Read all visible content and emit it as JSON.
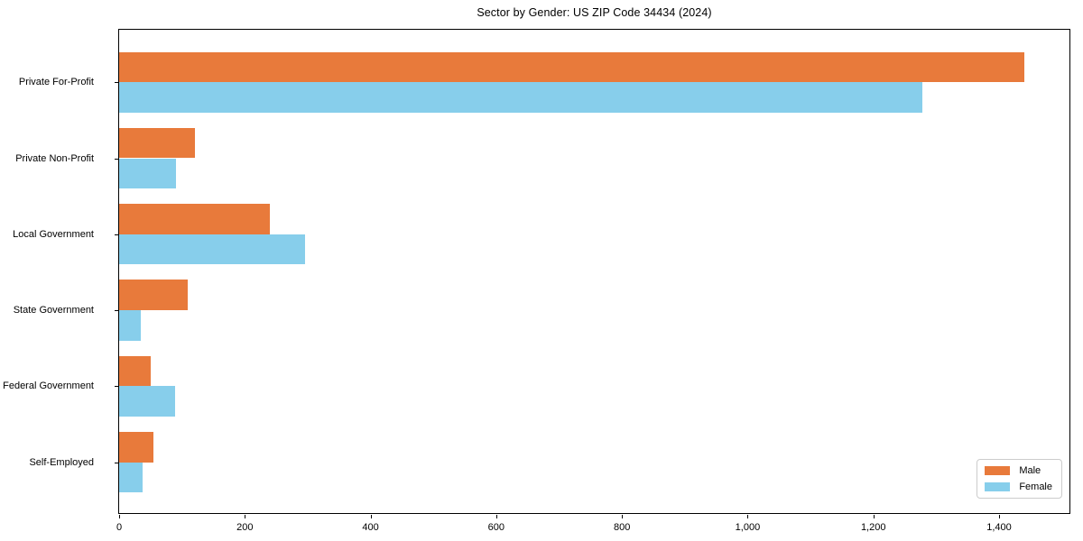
{
  "chart_data": {
    "type": "bar",
    "orientation": "horizontal",
    "title": "Sector by Gender: US ZIP Code 34434 (2024)",
    "categories": [
      "Private For-Profit",
      "Private Non-Profit",
      "Local Government",
      "State Government",
      "Federal Government",
      "Self-Employed"
    ],
    "series": [
      {
        "name": "Male",
        "color": "#E87A3B",
        "values": [
          1440,
          121,
          240,
          109,
          50,
          54
        ]
      },
      {
        "name": "Female",
        "color": "#87CEEB",
        "values": [
          1278,
          91,
          296,
          35,
          89,
          37
        ]
      }
    ],
    "xlabel": "",
    "ylabel": "",
    "xlim": [
      0,
      1512
    ],
    "xticks": [
      0,
      200,
      400,
      600,
      800,
      1000,
      1200,
      1400
    ],
    "xtick_labels": [
      "0",
      "200",
      "400",
      "600",
      "800",
      "1,000",
      "1,200",
      "1,400"
    ],
    "grid": false,
    "legend_position": "lower right",
    "background_color": "#ffffff",
    "axis_color": "#000000"
  }
}
